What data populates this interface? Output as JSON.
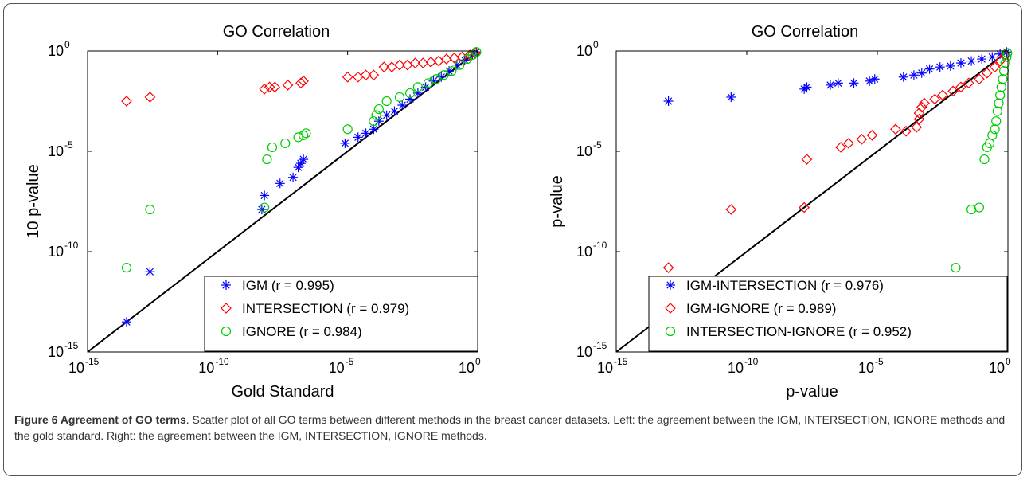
{
  "figure": {
    "caption_title": "Figure 6 Agreement of GO terms",
    "caption_text": ". Scatter plot of all GO terms between different methods in the breast cancer datasets. Left: the agreement between the IGM, INTERSECTION, IGNORE methods and the gold standard. Right: the agreement between the IGM, INTERSECTION, IGNORE methods."
  },
  "chart_data": [
    {
      "type": "scatter",
      "title": "GO Correlation",
      "xlabel": "Gold Standard",
      "ylabel": "10 p-value",
      "x_scale": "log",
      "y_scale": "log",
      "xlim_exp": [
        -15,
        0
      ],
      "ylim_exp": [
        -15,
        0
      ],
      "xticks": [
        {
          "base": "10",
          "exp": "-15",
          "v": -15
        },
        {
          "base": "10",
          "exp": "-10",
          "v": -10
        },
        {
          "base": "10",
          "exp": "-5",
          "v": -5
        },
        {
          "base": "10",
          "exp": "0",
          "v": 0
        }
      ],
      "yticks": [
        {
          "base": "10",
          "exp": "-15",
          "v": -15
        },
        {
          "base": "10",
          "exp": "-10",
          "v": -10
        },
        {
          "base": "10",
          "exp": "-5",
          "v": -5
        },
        {
          "base": "10",
          "exp": "0",
          "v": 0
        }
      ],
      "diagonal": true,
      "legend_position": "bottom-right",
      "series": [
        {
          "name": "IGM (r = 0.995)",
          "marker": "star",
          "color": "#0000ff",
          "points": [
            [
              -13.5,
              -13.5
            ],
            [
              -12.6,
              -11.0
            ],
            [
              -8.3,
              -7.9
            ],
            [
              -8.2,
              -7.2
            ],
            [
              -7.6,
              -6.6
            ],
            [
              -7.1,
              -6.3
            ],
            [
              -6.9,
              -5.8
            ],
            [
              -6.8,
              -5.6
            ],
            [
              -6.7,
              -5.4
            ],
            [
              -5.1,
              -4.6
            ],
            [
              -4.6,
              -4.3
            ],
            [
              -4.3,
              -4.1
            ],
            [
              -4.0,
              -3.9
            ],
            [
              -3.8,
              -3.5
            ],
            [
              -3.5,
              -3.2
            ],
            [
              -3.2,
              -3.0
            ],
            [
              -2.9,
              -2.7
            ],
            [
              -2.6,
              -2.4
            ],
            [
              -2.3,
              -2.1
            ],
            [
              -2.0,
              -1.8
            ],
            [
              -1.7,
              -1.5
            ],
            [
              -1.4,
              -1.3
            ],
            [
              -1.1,
              -1.0
            ],
            [
              -0.8,
              -0.7
            ],
            [
              -0.5,
              -0.45
            ],
            [
              -0.2,
              -0.2
            ],
            [
              -0.05,
              -0.05
            ]
          ]
        },
        {
          "name": "INTERSECTION (r = 0.979)",
          "marker": "diamond",
          "color": "#ff0000",
          "points": [
            [
              -13.5,
              -2.5
            ],
            [
              -12.6,
              -2.3
            ],
            [
              -8.2,
              -1.9
            ],
            [
              -8.0,
              -1.8
            ],
            [
              -7.8,
              -1.8
            ],
            [
              -7.3,
              -1.7
            ],
            [
              -6.8,
              -1.6
            ],
            [
              -6.7,
              -1.5
            ],
            [
              -5.0,
              -1.3
            ],
            [
              -4.6,
              -1.3
            ],
            [
              -4.3,
              -1.2
            ],
            [
              -4.0,
              -1.2
            ],
            [
              -3.6,
              -0.8
            ],
            [
              -3.3,
              -0.8
            ],
            [
              -3.0,
              -0.7
            ],
            [
              -2.7,
              -0.7
            ],
            [
              -2.4,
              -0.6
            ],
            [
              -2.1,
              -0.6
            ],
            [
              -1.8,
              -0.55
            ],
            [
              -1.5,
              -0.5
            ],
            [
              -1.2,
              -0.4
            ],
            [
              -0.9,
              -0.35
            ],
            [
              -0.6,
              -0.3
            ],
            [
              -0.3,
              -0.2
            ],
            [
              -0.1,
              -0.1
            ]
          ]
        },
        {
          "name": "IGNORE (r = 0.984)",
          "marker": "circle",
          "color": "#00cc00",
          "points": [
            [
              -13.5,
              -10.8
            ],
            [
              -12.6,
              -7.9
            ],
            [
              -8.2,
              -7.8
            ],
            [
              -8.1,
              -5.4
            ],
            [
              -7.9,
              -4.8
            ],
            [
              -7.4,
              -4.6
            ],
            [
              -6.9,
              -4.3
            ],
            [
              -6.7,
              -4.2
            ],
            [
              -6.6,
              -4.1
            ],
            [
              -5.0,
              -3.9
            ],
            [
              -4.0,
              -3.5
            ],
            [
              -3.9,
              -3.2
            ],
            [
              -3.8,
              -2.9
            ],
            [
              -3.5,
              -2.5
            ],
            [
              -3.0,
              -2.3
            ],
            [
              -2.6,
              -2.1
            ],
            [
              -2.3,
              -1.8
            ],
            [
              -1.9,
              -1.6
            ],
            [
              -1.6,
              -1.4
            ],
            [
              -1.3,
              -1.2
            ],
            [
              -1.0,
              -1.0
            ],
            [
              -0.7,
              -0.7
            ],
            [
              -0.4,
              -0.4
            ],
            [
              -0.2,
              -0.2
            ],
            [
              -0.05,
              -0.05
            ]
          ]
        }
      ]
    },
    {
      "type": "scatter",
      "title": "GO Correlation",
      "xlabel": "p-value",
      "ylabel": "p-value",
      "x_scale": "log",
      "y_scale": "log",
      "xlim_exp": [
        -15,
        0
      ],
      "ylim_exp": [
        -15,
        0
      ],
      "xticks": [
        {
          "base": "10",
          "exp": "-15",
          "v": -15
        },
        {
          "base": "10",
          "exp": "-10",
          "v": -10
        },
        {
          "base": "10",
          "exp": "-5",
          "v": -5
        },
        {
          "base": "10",
          "exp": "0",
          "v": 0
        }
      ],
      "yticks": [
        {
          "base": "10",
          "exp": "-15",
          "v": -15
        },
        {
          "base": "10",
          "exp": "-10",
          "v": -10
        },
        {
          "base": "10",
          "exp": "-5",
          "v": -5
        },
        {
          "base": "10",
          "exp": "0",
          "v": 0
        }
      ],
      "diagonal": true,
      "legend_position": "bottom-right",
      "series": [
        {
          "name": "IGM-INTERSECTION (r = 0.976)",
          "marker": "star",
          "color": "#0000ff",
          "points": [
            [
              -13.0,
              -2.5
            ],
            [
              -10.6,
              -2.3
            ],
            [
              -7.8,
              -1.9
            ],
            [
              -7.7,
              -1.8
            ],
            [
              -6.8,
              -1.7
            ],
            [
              -6.5,
              -1.6
            ],
            [
              -5.9,
              -1.6
            ],
            [
              -5.3,
              -1.5
            ],
            [
              -5.1,
              -1.4
            ],
            [
              -4.0,
              -1.3
            ],
            [
              -3.6,
              -1.2
            ],
            [
              -3.3,
              -1.1
            ],
            [
              -3.0,
              -0.9
            ],
            [
              -2.6,
              -0.8
            ],
            [
              -2.2,
              -0.75
            ],
            [
              -1.8,
              -0.6
            ],
            [
              -1.4,
              -0.5
            ],
            [
              -1.0,
              -0.4
            ],
            [
              -0.6,
              -0.3
            ],
            [
              -0.3,
              -0.15
            ],
            [
              -0.05,
              -0.05
            ]
          ]
        },
        {
          "name": "IGM-IGNORE (r = 0.989)",
          "marker": "diamond",
          "color": "#ff0000",
          "points": [
            [
              -13.0,
              -10.8
            ],
            [
              -10.6,
              -7.9
            ],
            [
              -7.8,
              -7.8
            ],
            [
              -7.7,
              -5.4
            ],
            [
              -6.4,
              -4.8
            ],
            [
              -6.1,
              -4.6
            ],
            [
              -5.6,
              -4.4
            ],
            [
              -5.2,
              -4.2
            ],
            [
              -4.3,
              -3.9
            ],
            [
              -3.9,
              -4.0
            ],
            [
              -3.5,
              -3.8
            ],
            [
              -3.4,
              -3.4
            ],
            [
              -3.4,
              -3.1
            ],
            [
              -3.3,
              -2.8
            ],
            [
              -3.2,
              -2.6
            ],
            [
              -2.8,
              -2.4
            ],
            [
              -2.5,
              -2.2
            ],
            [
              -2.1,
              -2.0
            ],
            [
              -1.8,
              -1.8
            ],
            [
              -1.5,
              -1.6
            ],
            [
              -1.1,
              -1.4
            ],
            [
              -0.8,
              -1.1
            ],
            [
              -0.5,
              -0.8
            ],
            [
              -0.3,
              -0.5
            ],
            [
              -0.1,
              -0.2
            ]
          ]
        },
        {
          "name": "INTERSECTION-IGNORE (r = 0.952)",
          "marker": "circle",
          "color": "#00cc00",
          "points": [
            [
              -2.0,
              -10.8
            ],
            [
              -1.4,
              -7.9
            ],
            [
              -1.1,
              -7.8
            ],
            [
              -0.9,
              -5.4
            ],
            [
              -0.8,
              -4.8
            ],
            [
              -0.7,
              -4.6
            ],
            [
              -0.6,
              -4.2
            ],
            [
              -0.5,
              -3.9
            ],
            [
              -0.45,
              -3.5
            ],
            [
              -0.4,
              -3.0
            ],
            [
              -0.35,
              -2.6
            ],
            [
              -0.3,
              -2.2
            ],
            [
              -0.25,
              -1.8
            ],
            [
              -0.2,
              -1.4
            ],
            [
              -0.15,
              -1.0
            ],
            [
              -0.1,
              -0.6
            ],
            [
              -0.05,
              -0.3
            ],
            [
              -0.02,
              -0.1
            ]
          ]
        }
      ]
    }
  ]
}
